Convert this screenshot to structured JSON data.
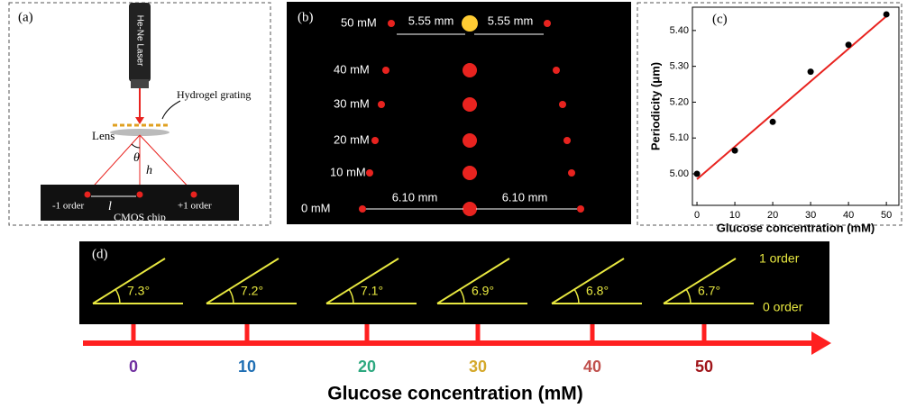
{
  "panel_a": {
    "label": "(a)",
    "laser": "He-Ne Laser",
    "grating": "Hydrogel grating",
    "lens": "Lens",
    "theta": "θ",
    "h": "h",
    "minus_order": "-1 order",
    "l": "l",
    "plus_order": "+1 order",
    "chip": "CMOS chip"
  },
  "panel_b": {
    "label": "(b)",
    "rows": [
      "50 mM",
      "40 mM",
      "30 mM",
      "20 mM",
      "10 mM",
      "0 mM"
    ],
    "top_distances": [
      "5.55 mm",
      "5.55 mm"
    ],
    "bottom_distances": [
      "6.10 mm",
      "6.10 mm"
    ]
  },
  "chart_data": {
    "type": "scatter",
    "label": "(c)",
    "x_label": "Glucose concentration (mM)",
    "y_label": "Periodicity (μm)",
    "x": [
      0,
      10,
      20,
      30,
      40,
      50
    ],
    "values": [
      5.0,
      5.065,
      5.145,
      5.285,
      5.36,
      5.445
    ],
    "color": "#000000",
    "fit": {
      "x": [
        0,
        50
      ],
      "values": [
        4.985,
        5.44
      ],
      "color": "#e8231f"
    },
    "xlim": [
      -1.2,
      53.3
    ],
    "ylim": [
      4.912,
      5.465
    ],
    "xticks": [
      0,
      10,
      20,
      30,
      40,
      50
    ],
    "yticks": [
      {
        "value": 5,
        "label": "5.00"
      },
      {
        "value": 5.1,
        "label": "5.10"
      },
      {
        "value": 5.2,
        "label": "5.20"
      },
      {
        "value": 5.3,
        "label": "5.30"
      },
      {
        "value": 5.4,
        "label": "5.40"
      }
    ]
  },
  "panel_d": {
    "label": "(d)",
    "angles": [
      "7.3°",
      "7.2°",
      "7.1°",
      "6.9°",
      "6.8°",
      "6.7°"
    ],
    "first_order": "1 order",
    "zero_order": "0 order",
    "concentrations": [
      "0",
      "10",
      "20",
      "30",
      "40",
      "50"
    ],
    "concentration_colors": [
      "#7030a0",
      "#1f6fb4",
      "#2ca87f",
      "#d4a82a",
      "#c0504d",
      "#a0151a"
    ],
    "axis_title": "Glucose concentration  (mM)"
  }
}
